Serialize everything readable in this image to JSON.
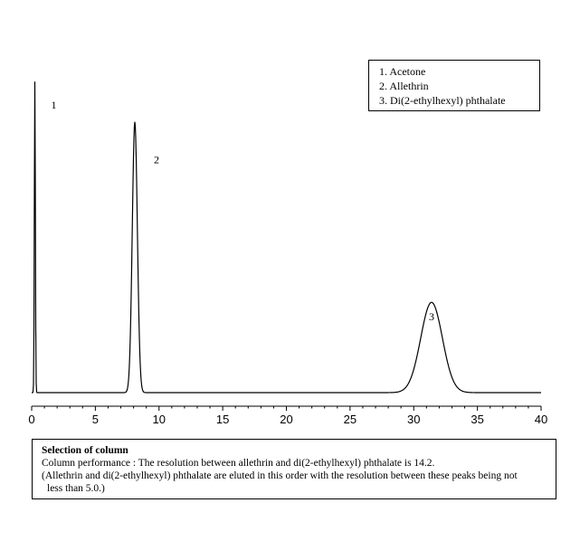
{
  "chart_data": {
    "type": "line",
    "title": "",
    "xlabel": "",
    "ylabel": "",
    "xlim": [
      0,
      40
    ],
    "x_ticks": [
      0,
      5,
      10,
      15,
      20,
      25,
      30,
      35,
      40
    ],
    "x_tick_labels": [
      "0",
      "5",
      "10",
      "15",
      "20",
      "25",
      "30",
      "35",
      "40"
    ],
    "grid": false,
    "legend_placement": "top-right",
    "legend": [
      "1. Acetone",
      "2. Allethrin",
      "3. Di(2-ethylhexyl) phthalate"
    ],
    "peaks": [
      {
        "label": "1",
        "retention_time": 0.25,
        "relative_height": 1.0
      },
      {
        "label": "2",
        "retention_time": 8.1,
        "relative_height": 0.87
      },
      {
        "label": "3",
        "retention_time": 31.4,
        "relative_height": 0.29
      }
    ],
    "line_color": "#000000"
  },
  "note": {
    "title": "Selection of column",
    "lines": [
      "Column performance : The resolution between allethrin and di(2-ethylhexyl) phthalate is 14.2.",
      "(Allethrin and di(2-ethylhexyl) phthalate are eluted in this order with the resolution between these peaks being not",
      "less than 5.0.)"
    ]
  }
}
